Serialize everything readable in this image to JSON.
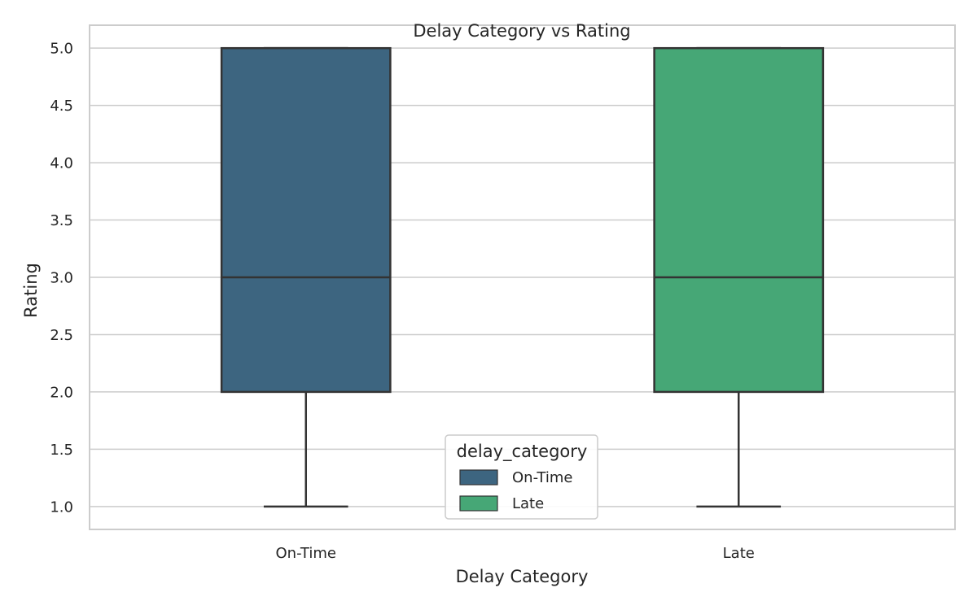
{
  "chart_data": {
    "type": "box",
    "title": "Delay Category vs Rating",
    "xlabel": "Delay Category",
    "ylabel": "Rating",
    "categories": [
      "On-Time",
      "Late"
    ],
    "ylim": [
      0.8,
      5.2
    ],
    "yticks": [
      "1.0",
      "1.5",
      "2.0",
      "2.5",
      "3.0",
      "3.5",
      "4.0",
      "4.5",
      "5.0"
    ],
    "grid": true,
    "series": [
      {
        "name": "On-Time",
        "color": "#3d6580",
        "whisker_low": 1.0,
        "q1": 2.0,
        "median": 3.0,
        "q3": 5.0,
        "whisker_high": 5.0
      },
      {
        "name": "Late",
        "color": "#46a776",
        "whisker_low": 1.0,
        "q1": 2.0,
        "median": 3.0,
        "q3": 5.0,
        "whisker_high": 5.0
      }
    ],
    "legend": {
      "title": "delay_category",
      "placement": "lower-center",
      "entries": [
        "On-Time",
        "Late"
      ]
    }
  }
}
